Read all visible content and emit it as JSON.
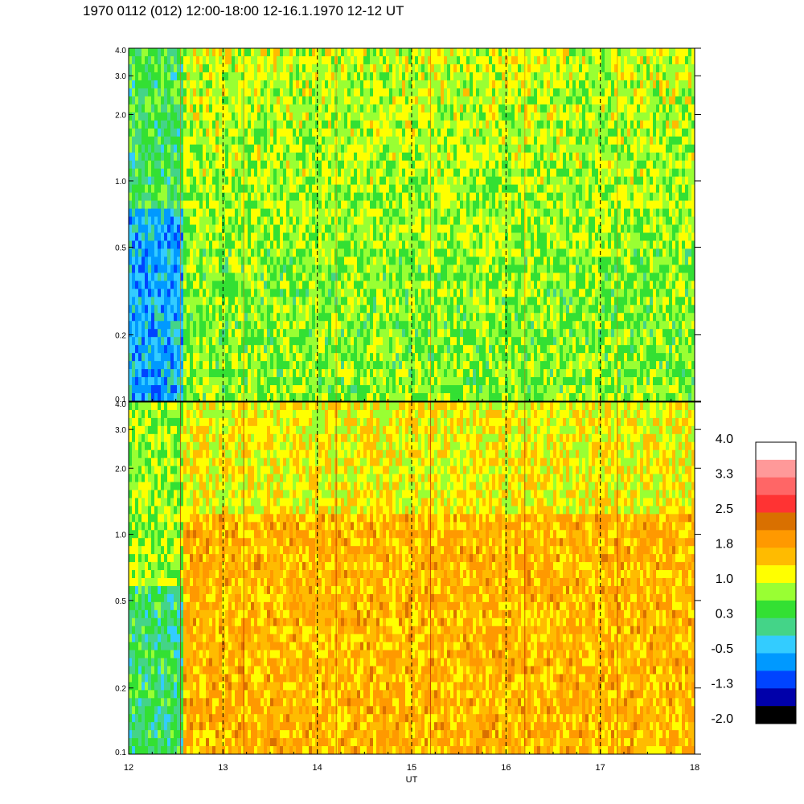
{
  "title": "1970 0112 (012) 12:00-18:00 12-16.1.1970  12-12 UT",
  "colors": {
    "background": "#ffffff",
    "ink": "#000000"
  },
  "chart_data": [
    {
      "type": "heatmap",
      "panel": "top",
      "title": "",
      "xlabel": "",
      "ylabel": "",
      "xlim": [
        12,
        18
      ],
      "ylim": [
        0.1,
        4.0
      ],
      "yscale": "log",
      "x_ticks": [
        12,
        13,
        14,
        15,
        16,
        17,
        18
      ],
      "y_ticks": [
        "0.1",
        "0.2",
        "0.5",
        "1.0",
        "2.0",
        "3.0",
        "4.0"
      ],
      "dashed_hour_lines": [
        13,
        14,
        15,
        16,
        17
      ],
      "dominant_levels": [
        0.3,
        1.0
      ]
    },
    {
      "type": "heatmap",
      "panel": "bottom",
      "title": "",
      "xlabel": "UT",
      "ylabel": "",
      "xlim": [
        12,
        18
      ],
      "ylim": [
        0.1,
        4.0
      ],
      "yscale": "log",
      "x_ticks": [
        "12",
        "13",
        "14",
        "15",
        "16",
        "17",
        "18"
      ],
      "y_ticks": [
        "0.1",
        "0.2",
        "0.5",
        "1.0",
        "2.0",
        "3.0",
        "4.0"
      ],
      "dashed_hour_lines": [
        13,
        14,
        15,
        16,
        17
      ],
      "dominant_levels": [
        1.4,
        1.8
      ]
    }
  ],
  "colorbar": {
    "labels": [
      "4.0",
      "3.3",
      "2.5",
      "1.8",
      "1.0",
      "0.3",
      "-0.5",
      "-1.3",
      "-2.0"
    ],
    "colors": [
      "#ffffff",
      "#ff9999",
      "#ff6666",
      "#ff3333",
      "#d97000",
      "#ff9900",
      "#ffbb00",
      "#ffff00",
      "#99ff33",
      "#33e033",
      "#44d488",
      "#33ccff",
      "#0099ff",
      "#0044ff",
      "#0000aa",
      "#000000"
    ]
  }
}
